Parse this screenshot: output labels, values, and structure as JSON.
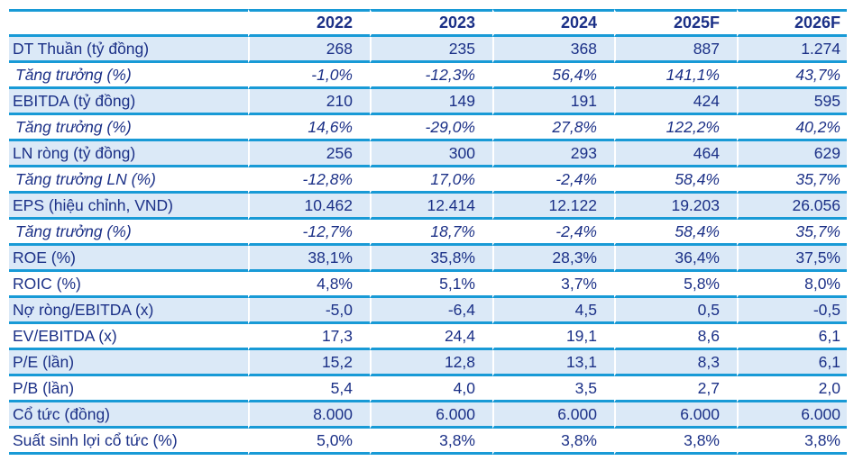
{
  "colors": {
    "line_cyan": "#189ad6",
    "row_fill": "#dbe9f7",
    "text_navy": "#1b3087"
  },
  "table": {
    "name": "financial-summary-table",
    "columns": [
      "",
      "2022",
      "2023",
      "2024",
      "2025F",
      "2026F"
    ],
    "rows": [
      {
        "label": "DT Thuần (tỷ đồng)",
        "style": "shaded",
        "values": [
          "268",
          "235",
          "368",
          "887",
          "1.274"
        ]
      },
      {
        "label": "Tăng trưởng (%)",
        "style": "italic",
        "values": [
          "-1,0%",
          "-12,3%",
          "56,4%",
          "141,1%",
          "43,7%"
        ]
      },
      {
        "label": "EBITDA (tỷ đồng)",
        "style": "shaded",
        "values": [
          "210",
          "149",
          "191",
          "424",
          "595"
        ]
      },
      {
        "label": "Tăng trưởng (%)",
        "style": "italic",
        "values": [
          "14,6%",
          "-29,0%",
          "27,8%",
          "122,2%",
          "40,2%"
        ]
      },
      {
        "label": "LN ròng (tỷ đồng)",
        "style": "shaded",
        "values": [
          "256",
          "300",
          "293",
          "464",
          "629"
        ]
      },
      {
        "label": "Tăng trưởng LN (%)",
        "style": "italic",
        "values": [
          "-12,8%",
          "17,0%",
          "-2,4%",
          "58,4%",
          "35,7%"
        ]
      },
      {
        "label": "EPS (hiệu chỉnh, VND)",
        "style": "shaded",
        "values": [
          "10.462",
          "12.414",
          "12.122",
          "19.203",
          "26.056"
        ]
      },
      {
        "label": "Tăng trưởng (%)",
        "style": "italic",
        "values": [
          "-12,7%",
          "18,7%",
          "-2,4%",
          "58,4%",
          "35,7%"
        ]
      },
      {
        "label": "ROE (%)",
        "style": "shaded",
        "values": [
          "38,1%",
          "35,8%",
          "28,3%",
          "36,4%",
          "37,5%"
        ]
      },
      {
        "label": "ROIC (%)",
        "style": "plain",
        "values": [
          "4,8%",
          "5,1%",
          "3,7%",
          "5,8%",
          "8,0%"
        ]
      },
      {
        "label": "Nợ ròng/EBITDA (x)",
        "style": "shaded",
        "values": [
          "-5,0",
          "-6,4",
          "4,5",
          "0,5",
          "-0,5"
        ]
      },
      {
        "label": "EV/EBITDA (x)",
        "style": "plain",
        "values": [
          "17,3",
          "24,4",
          "19,1",
          "8,6",
          "6,1"
        ]
      },
      {
        "label": "P/E (lần)",
        "style": "shaded",
        "values": [
          "15,2",
          "12,8",
          "13,1",
          "8,3",
          "6,1"
        ]
      },
      {
        "label": "P/B (lần)",
        "style": "plain",
        "values": [
          "5,4",
          "4,0",
          "3,5",
          "2,7",
          "2,0"
        ]
      },
      {
        "label": "Cổ tức (đồng)",
        "style": "shaded",
        "values": [
          "8.000",
          "6.000",
          "6.000",
          "6.000",
          "6.000"
        ]
      },
      {
        "label": "Suất sinh lợi cổ tức (%)",
        "style": "plain",
        "values": [
          "5,0%",
          "3,8%",
          "3,8%",
          "3,8%",
          "3,8%"
        ]
      }
    ]
  }
}
